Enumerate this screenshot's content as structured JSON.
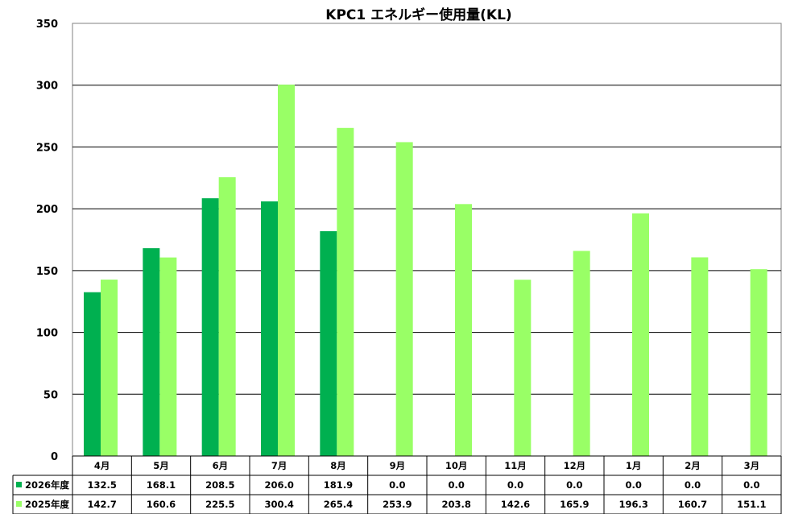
{
  "chart_data": {
    "type": "bar",
    "title": "KPC1 エネルギー使用量(KL)",
    "categories": [
      "4月",
      "5月",
      "6月",
      "7月",
      "8月",
      "9月",
      "10月",
      "11月",
      "12月",
      "1月",
      "2月",
      "3月"
    ],
    "series": [
      {
        "name": "2026年度",
        "color": "#00b050",
        "values": [
          132.5,
          168.1,
          208.5,
          206.0,
          181.9,
          0.0,
          0.0,
          0.0,
          0.0,
          0.0,
          0.0,
          0.0
        ],
        "labels": [
          "132.5",
          "168.1",
          "208.5",
          "206.0",
          "181.9",
          "0.0",
          "0.0",
          "0.0",
          "0.0",
          "0.0",
          "0.0",
          "0.0"
        ]
      },
      {
        "name": "2025年度",
        "color": "#99ff66",
        "values": [
          142.7,
          160.6,
          225.5,
          300.4,
          265.4,
          253.9,
          203.8,
          142.6,
          165.9,
          196.3,
          160.7,
          151.1
        ],
        "labels": [
          "142.7",
          "160.6",
          "225.5",
          "300.4",
          "265.4",
          "253.9",
          "203.8",
          "142.6",
          "165.9",
          "196.3",
          "160.7",
          "151.1"
        ]
      }
    ],
    "ylim": [
      0,
      350
    ],
    "yticks": [
      0,
      50,
      100,
      150,
      200,
      250,
      300,
      350
    ],
    "grid": true,
    "legend": "data-table",
    "xlabel": "",
    "ylabel": ""
  }
}
